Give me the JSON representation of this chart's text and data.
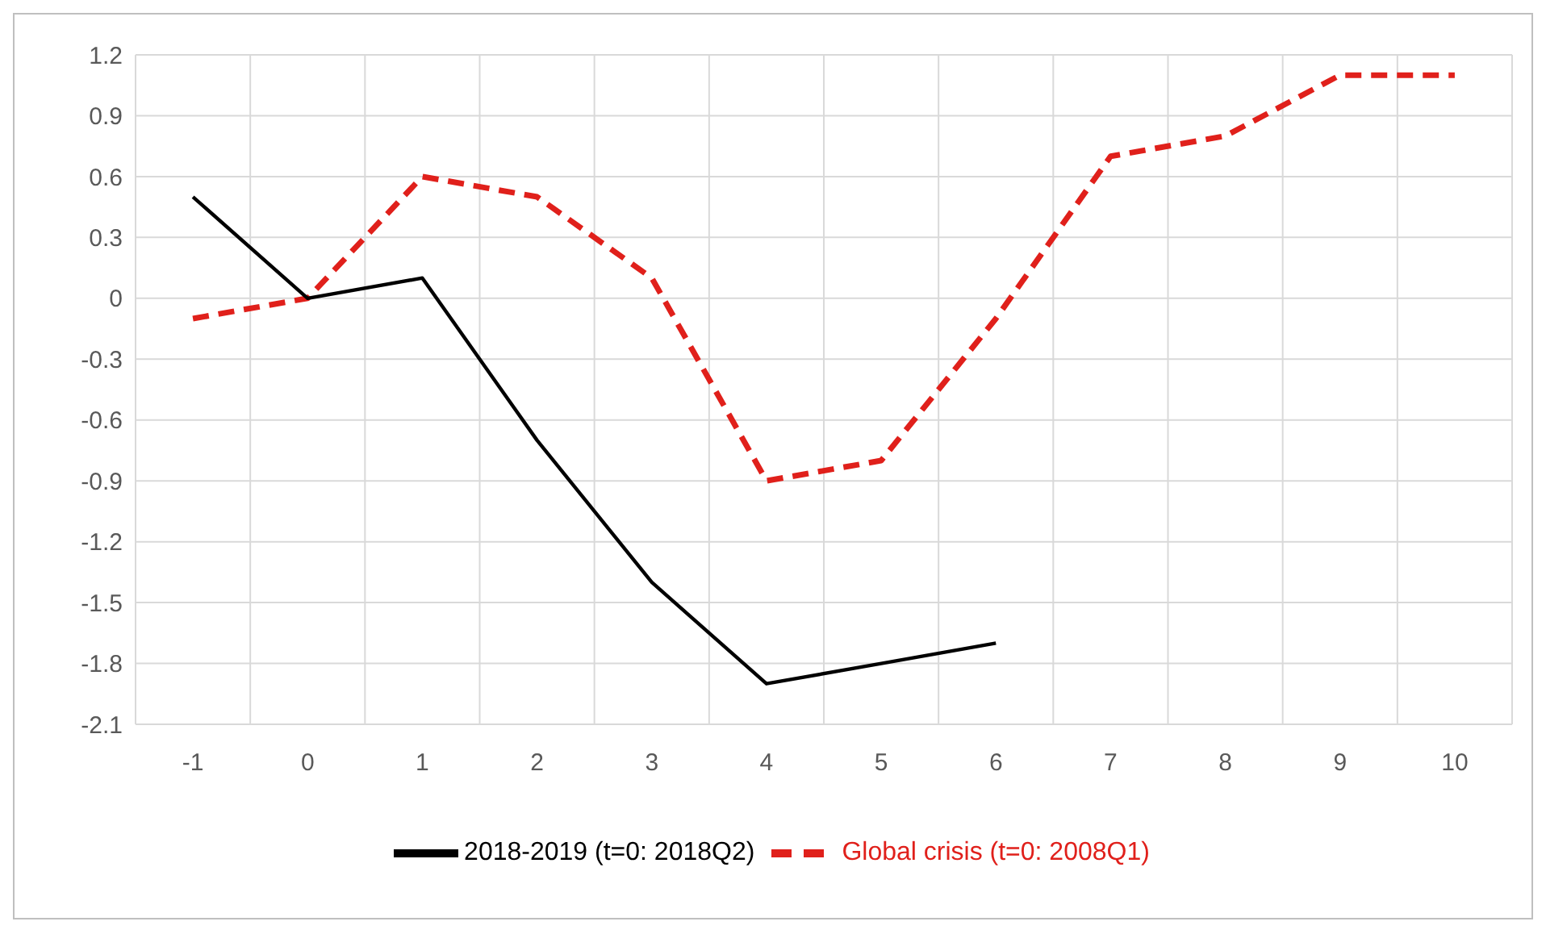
{
  "chart_data": {
    "type": "line",
    "categories": [
      "-1",
      "0",
      "1",
      "2",
      "3",
      "4",
      "5",
      "6",
      "7",
      "8",
      "9",
      "10"
    ],
    "series": [
      {
        "name": "Global crisis (t=0: 2008Q1)",
        "color": "#e0201b",
        "line_style": "dashed",
        "values": [
          -0.1,
          0,
          0.6,
          0.5,
          0.1,
          -0.9,
          -0.8,
          -0.1,
          0.7,
          0.8,
          1.1,
          1.1
        ]
      },
      {
        "name": "2018-2019 (t=0: 2018Q2)",
        "color": "#000000",
        "line_style": "solid",
        "values": [
          0.5,
          0,
          0.1,
          -0.7,
          -1.4,
          -1.9,
          -1.8,
          -1.7,
          null,
          null,
          null,
          null
        ]
      }
    ],
    "ylim": [
      -2.1,
      1.2
    ],
    "yticks": [
      -2.1,
      -1.8,
      -1.5,
      -1.2,
      -0.9,
      -0.6,
      -0.3,
      0,
      0.3,
      0.6,
      0.9,
      1.2
    ],
    "grid": true,
    "legend": "bottom",
    "marker": "none"
  }
}
